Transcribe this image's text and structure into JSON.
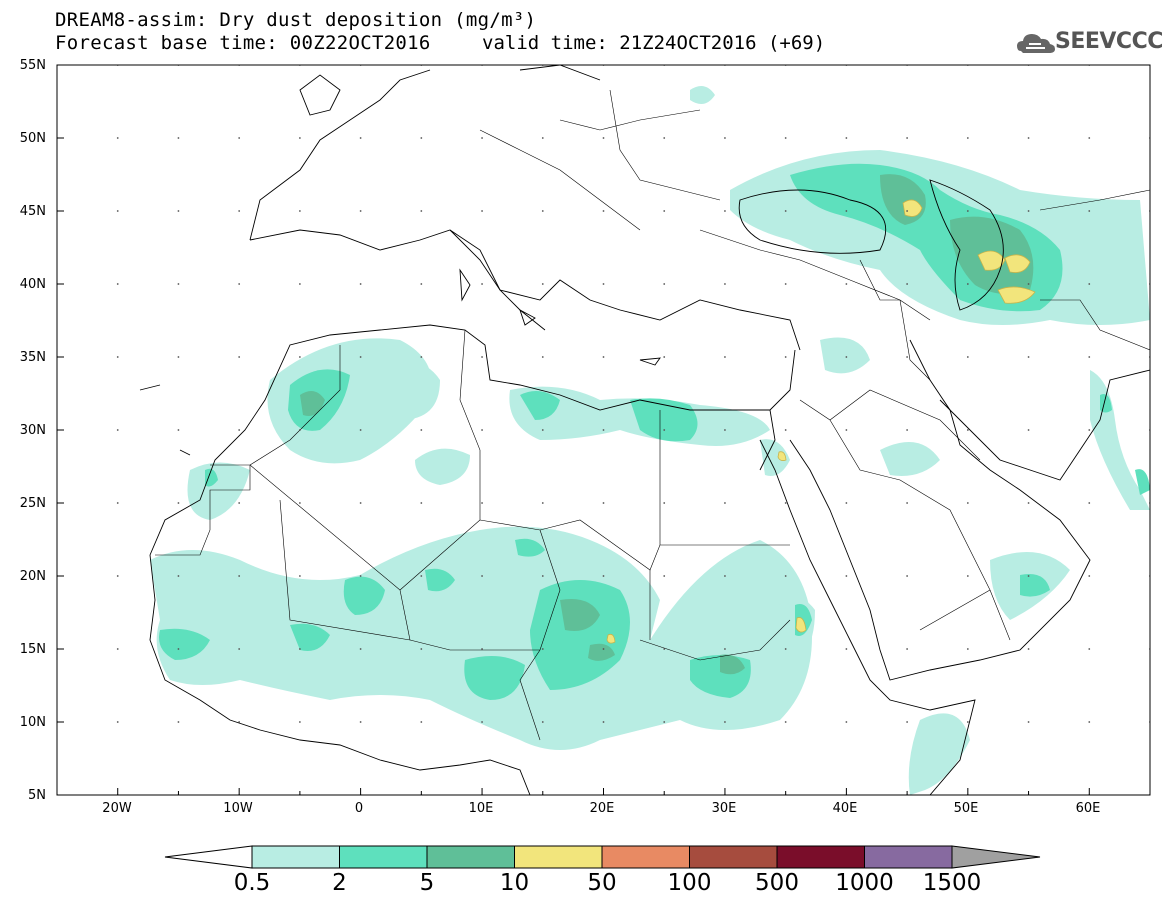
{
  "header": {
    "title_line1": "DREAM8-assim: Dry dust deposition (mg/m³)",
    "title_line2": "Forecast base time: 00Z22OCT2016",
    "valid_time": "valid time: 21Z24OCT2016 (+69)",
    "logo_text": "SEEVCCC",
    "logo_icon": "cloud-icon"
  },
  "map": {
    "lat_labels": [
      "55N",
      "50N",
      "45N",
      "40N",
      "35N",
      "30N",
      "25N",
      "20N",
      "15N",
      "10N",
      "5N"
    ],
    "lon_labels": [
      "20W",
      "10W",
      "0",
      "10E",
      "20E",
      "30E",
      "40E",
      "50E",
      "60E"
    ],
    "lat_range": [
      5,
      55
    ],
    "lon_range": [
      -25,
      65
    ]
  },
  "colorbar": {
    "labels": [
      "0.5",
      "2",
      "5",
      "10",
      "50",
      "100",
      "500",
      "1000",
      "1500"
    ],
    "colors": [
      "#b8ede3",
      "#5ee0bd",
      "#5fbf98",
      "#f2e57c",
      "#e88a63",
      "#a64c3e",
      "#7a0d2a",
      "#876aa0"
    ],
    "under_color": "#ffffff",
    "over_color": "#a0a0a0"
  }
}
